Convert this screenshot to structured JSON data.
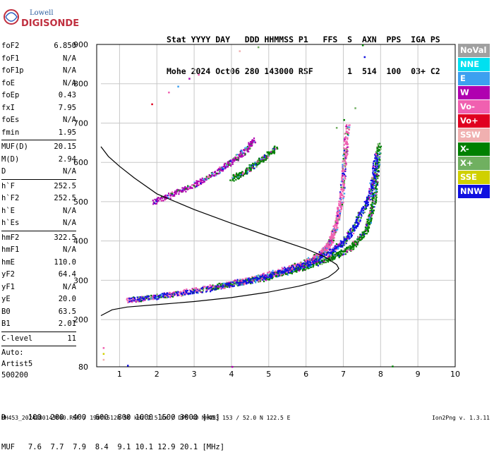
{
  "logo": {
    "line1": "Lowell",
    "line2": "DIGISONDE"
  },
  "header": {
    "line1": "Stat YYYY DAY   DDD HHMMSS P1   FFS  S  AXN  PPS  IGA PS",
    "line2": "Mohe 2024 Oct06 280 143000 RSF       1  514  100  03+ C2"
  },
  "sidebar": {
    "group1": [
      {
        "label": "foF2",
        "value": "6.850"
      },
      {
        "label": "foF1",
        "value": "N/A"
      },
      {
        "label": "foF1p",
        "value": "N/A"
      },
      {
        "label": "foE",
        "value": "N/A"
      },
      {
        "label": "foEp",
        "value": "0.43"
      },
      {
        "label": "fxI",
        "value": "7.95"
      },
      {
        "label": "foEs",
        "value": "N/A"
      },
      {
        "label": "fmin",
        "value": "1.95"
      }
    ],
    "group2": [
      {
        "label": "MUF(D)",
        "value": "20.15"
      },
      {
        "label": "M(D)",
        "value": "2.94"
      },
      {
        "label": "D",
        "value": "N/A"
      }
    ],
    "group3": [
      {
        "label": "h`F",
        "value": "252.5"
      },
      {
        "label": "h`F2",
        "value": "252.5"
      },
      {
        "label": "h`E",
        "value": "N/A"
      },
      {
        "label": "h`Es",
        "value": "N/A"
      }
    ],
    "group4": [
      {
        "label": "hmF2",
        "value": "322.5"
      },
      {
        "label": "hmF1",
        "value": "N/A"
      },
      {
        "label": "hmE",
        "value": "110.0"
      },
      {
        "label": "yF2",
        "value": "64.4"
      },
      {
        "label": "yF1",
        "value": "N/A"
      },
      {
        "label": "yE",
        "value": "20.0"
      },
      {
        "label": "B0",
        "value": "63.5"
      },
      {
        "label": "B1",
        "value": "2.01"
      }
    ],
    "group5": [
      {
        "label": "C-level",
        "value": "11"
      }
    ],
    "auto": [
      "Auto:",
      "Artist5",
      "500200"
    ]
  },
  "legend": [
    {
      "label": "NoVal",
      "color": "#a0a0a0"
    },
    {
      "label": "NNE",
      "color": "#00e0f0"
    },
    {
      "label": "E",
      "color": "#3ca0f0"
    },
    {
      "label": "W",
      "color": "#b000b0"
    },
    {
      "label": "Vo-",
      "color": "#f060b0"
    },
    {
      "label": "Vo+",
      "color": "#e00020"
    },
    {
      "label": "SSW",
      "color": "#f0b0b0"
    },
    {
      "label": "X-",
      "color": "#008000"
    },
    {
      "label": "X+",
      "color": "#70b060"
    },
    {
      "label": "SSE",
      "color": "#d0d000"
    },
    {
      "label": "NNW",
      "color": "#1010e0"
    }
  ],
  "muf_table": {
    "line1": "D     100  200  400  600  800 1000 1500 3000 [km]",
    "line2": "MUF   7.6  7.7  7.9  8.4  9.1 10.1 12.9 20.1 [MHz]"
  },
  "footer": "MH453_2024280143000.RSF / 190fx512h 50 kHz 2.5 km / DPS-4D MH453 153 / 52.0 N 122.5 E",
  "version": "Ion2Png v. 1.3.11",
  "chart_data": {
    "type": "scatter",
    "xlim": [
      0.5,
      10
    ],
    "ylim": [
      80,
      900
    ],
    "x_ticks": [
      1,
      2,
      3,
      4,
      5,
      6,
      7,
      8,
      9,
      10
    ],
    "y_ticks": [
      80,
      200,
      300,
      400,
      500,
      600,
      700,
      800,
      900
    ],
    "grid": true,
    "profile_curve": {
      "x": [
        0.5,
        0.8,
        1.2,
        2.0,
        3.0,
        4.0,
        5.0,
        5.8,
        6.3,
        6.6,
        6.8,
        6.88,
        6.82,
        6.5,
        6.0,
        5.0,
        4.0,
        3.0,
        2.0,
        1.4,
        1.0,
        0.7,
        0.5
      ],
      "y": [
        210,
        225,
        232,
        238,
        246,
        256,
        270,
        285,
        297,
        308,
        322,
        330,
        340,
        360,
        380,
        412,
        445,
        480,
        520,
        560,
        590,
        615,
        640
      ]
    },
    "traces": [
      {
        "name": "O-trace",
        "series_color": "#f060b0",
        "x": [
          1.2,
          1.8,
          2.5,
          3.2,
          3.9,
          4.5,
          5.0,
          5.5,
          5.9,
          6.2,
          6.4,
          6.55,
          6.65,
          6.75,
          6.85,
          6.95,
          7.0,
          7.05,
          7.1
        ],
        "y": [
          250,
          258,
          268,
          280,
          292,
          304,
          318,
          332,
          345,
          358,
          370,
          385,
          400,
          430,
          470,
          520,
          580,
          640,
          700
        ]
      },
      {
        "name": "X-trace",
        "series_color": "#008000",
        "x": [
          3.5,
          4.2,
          4.8,
          5.3,
          5.8,
          6.2,
          6.6,
          6.9,
          7.2,
          7.4,
          7.6,
          7.7,
          7.8,
          7.85,
          7.9,
          7.95
        ],
        "y": [
          285,
          295,
          305,
          318,
          330,
          342,
          356,
          370,
          385,
          405,
          430,
          460,
          500,
          550,
          600,
          650
        ]
      },
      {
        "name": "NNW-trace",
        "series_color": "#1010e0",
        "x": [
          1.3,
          2.0,
          2.8,
          3.6,
          4.3,
          4.9,
          5.4,
          5.9,
          6.3,
          6.6,
          6.9,
          7.1,
          7.3,
          7.5,
          7.7,
          7.8,
          7.9
        ],
        "y": [
          252,
          260,
          270,
          283,
          296,
          310,
          325,
          340,
          355,
          372,
          392,
          410,
          440,
          480,
          520,
          570,
          630
        ]
      },
      {
        "name": "second-hop",
        "series_color": "#b000b0",
        "x": [
          1.9,
          2.4,
          2.9,
          3.4,
          3.8,
          4.1,
          4.4,
          4.6
        ],
        "y": [
          500,
          520,
          540,
          565,
          590,
          610,
          635,
          660
        ]
      },
      {
        "name": "second-hop-X",
        "series_color": "#008000",
        "x": [
          4.0,
          4.3,
          4.6,
          4.9,
          5.2
        ],
        "y": [
          560,
          575,
          595,
          615,
          640
        ]
      }
    ],
    "scattered_points": [
      {
        "x": 2.3,
        "y": 780,
        "c": "#f060b0"
      },
      {
        "x": 2.55,
        "y": 795,
        "c": "#3ca0f0"
      },
      {
        "x": 2.85,
        "y": 815,
        "c": "#b000b0"
      },
      {
        "x": 3.1,
        "y": 825,
        "c": "#f060b0"
      },
      {
        "x": 1.85,
        "y": 750,
        "c": "#e00020"
      },
      {
        "x": 4.2,
        "y": 885,
        "c": "#f0b0b0"
      },
      {
        "x": 4.7,
        "y": 895,
        "c": "#70b060"
      },
      {
        "x": 7.5,
        "y": 900,
        "c": "#008000"
      },
      {
        "x": 7.55,
        "y": 870,
        "c": "#1010e0"
      },
      {
        "x": 6.8,
        "y": 690,
        "c": "#70b060"
      },
      {
        "x": 7.0,
        "y": 710,
        "c": "#008000"
      },
      {
        "x": 7.3,
        "y": 740,
        "c": "#70b060"
      },
      {
        "x": 0.55,
        "y": 115,
        "c": "#d0d000"
      },
      {
        "x": 0.55,
        "y": 130,
        "c": "#f060b0"
      },
      {
        "x": 0.55,
        "y": 100,
        "c": "#f0b0b0"
      },
      {
        "x": 1.2,
        "y": 85,
        "c": "#1010e0"
      },
      {
        "x": 8.3,
        "y": 83,
        "c": "#008000"
      },
      {
        "x": 4.0,
        "y": 82,
        "c": "#b000b0"
      }
    ]
  }
}
